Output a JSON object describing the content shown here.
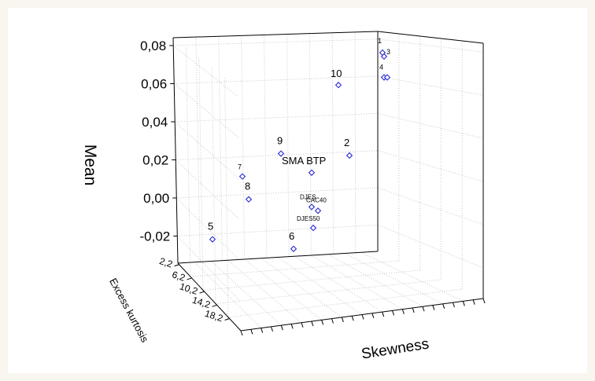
{
  "chart_data": {
    "type": "scatter3d",
    "zlabel": "Mean",
    "xlabel": "Skewness",
    "ylabel": "Excess kurtosis",
    "z_ticks": [
      "0,08",
      "0,06",
      "0,04",
      "0,02",
      "0,00",
      "-0,02"
    ],
    "y_ticks": [
      "2,2",
      "6,2",
      "10,2",
      "14,2",
      "18,2"
    ],
    "zlim": [
      -0.03,
      0.08
    ],
    "grid": true,
    "points": [
      {
        "label": "1",
        "mean": 0.08
      },
      {
        "label": "3",
        "mean": 0.078
      },
      {
        "label": "4",
        "mean": 0.067
      },
      {
        "label": "",
        "mean": 0.067
      },
      {
        "label": "10",
        "mean": 0.063
      },
      {
        "label": "9",
        "mean": 0.027
      },
      {
        "label": "2",
        "mean": 0.026
      },
      {
        "label": "7",
        "mean": 0.015
      },
      {
        "label": "SMA BTP",
        "mean": 0.017
      },
      {
        "label": "8",
        "mean": 0.003
      },
      {
        "label": "DJES",
        "mean": -0.001
      },
      {
        "label": "CAC40",
        "mean": -0.003
      },
      {
        "label": "DJES50",
        "mean": -0.012
      },
      {
        "label": "5",
        "mean": -0.018
      },
      {
        "label": "6",
        "mean": -0.023
      }
    ]
  }
}
